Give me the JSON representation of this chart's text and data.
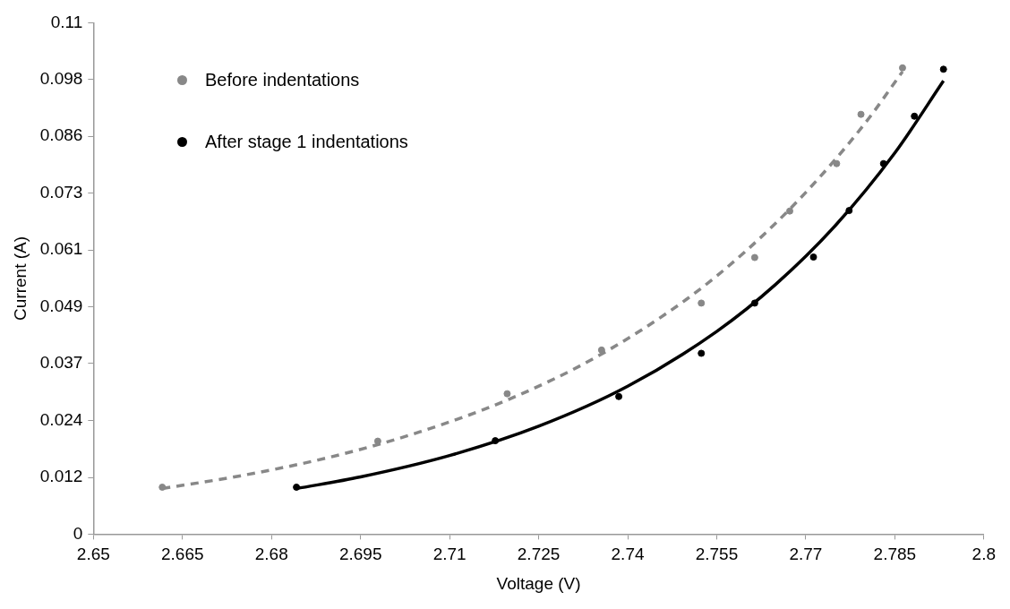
{
  "chart_data": {
    "type": "scatter",
    "xlabel": "Voltage (V)",
    "ylabel": "Current (A)",
    "xlim": [
      2.65,
      2.8
    ],
    "xticks": [
      2.65,
      2.665,
      2.68,
      2.695,
      2.71,
      2.725,
      2.74,
      2.755,
      2.77,
      2.785,
      2.8
    ],
    "ylim": [
      0,
      0.11
    ],
    "yticks": [
      0,
      {
        "value": 0.0122,
        "label": "0.012"
      },
      {
        "value": 0.0244,
        "label": "0.024"
      },
      {
        "value": 0.0367,
        "label": "0.037"
      },
      {
        "value": 0.0489,
        "label": "0.049"
      },
      {
        "value": 0.0611,
        "label": "0.061"
      },
      {
        "value": 0.0733,
        "label": "0.073"
      },
      {
        "value": 0.0856,
        "label": "0.086"
      },
      {
        "value": 0.0978,
        "label": "0.098"
      },
      0.11
    ],
    "grid": false,
    "legend": "top left",
    "marker": "circle",
    "series": [
      {
        "name": "Before indentations",
        "color": "#888888",
        "x": [
          2.6616,
          2.6979,
          2.7197,
          2.7356,
          2.7524,
          2.7614,
          2.7673,
          2.7752,
          2.7793,
          2.7863
        ],
        "values": [
          0.0101,
          0.02,
          0.0302,
          0.0396,
          0.0497,
          0.0595,
          0.0695,
          0.0797,
          0.0903,
          0.1003
        ]
      },
      {
        "name": "After stage 1 indentations",
        "color": "#000000",
        "x": [
          2.6842,
          2.7177,
          2.7385,
          2.7524,
          2.7614,
          2.7713,
          2.7773,
          2.7831,
          2.7883,
          2.7932
        ],
        "values": [
          0.0101,
          0.0201,
          0.0296,
          0.0389,
          0.0497,
          0.0596,
          0.0696,
          0.0797,
          0.0899,
          0.1
        ]
      },
      {
        "type": "line",
        "color": "#888888",
        "line_style": "dashed",
        "marker": "none",
        "x": [
          2.6616,
          2.675,
          2.69,
          2.705,
          2.72,
          2.735,
          2.75,
          2.76,
          2.77,
          2.78,
          2.7863
        ],
        "values": [
          0.0098,
          0.0126,
          0.0166,
          0.022,
          0.029,
          0.0383,
          0.0506,
          0.061,
          0.0735,
          0.0884,
          0.0995
        ]
      },
      {
        "type": "line",
        "color": "#000000",
        "line_style": "solid",
        "marker": "none",
        "x": [
          2.6842,
          2.695,
          2.71,
          2.725,
          2.74,
          2.755,
          2.765,
          2.775,
          2.785,
          2.7932
        ],
        "values": [
          0.0098,
          0.0123,
          0.0169,
          0.0232,
          0.0318,
          0.0436,
          0.0538,
          0.0664,
          0.082,
          0.0975
        ]
      }
    ]
  }
}
